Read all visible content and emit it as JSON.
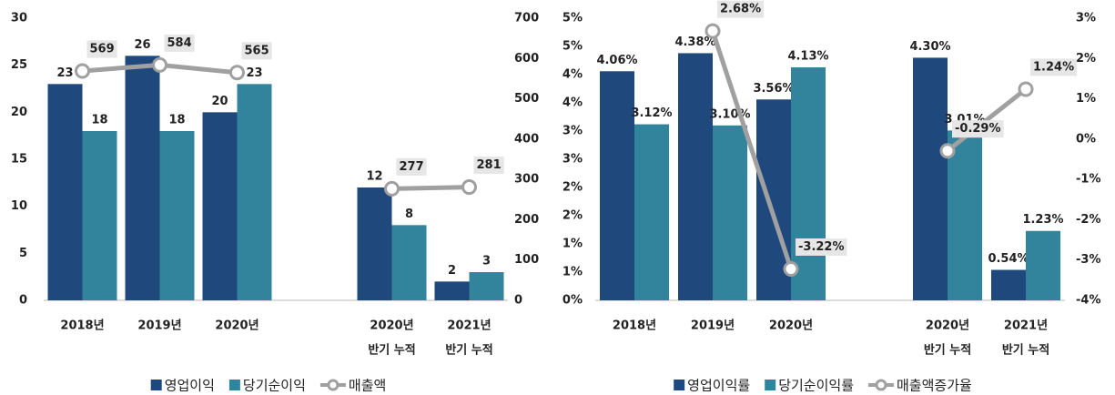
{
  "chart_data": [
    {
      "type": "bar-line",
      "categories": [
        [
          "2018년"
        ],
        [
          "2019년"
        ],
        [
          "2020년"
        ],
        null,
        [
          "2020년",
          "반기 누적"
        ],
        [
          "2021년",
          "반기 누적"
        ]
      ],
      "ylim": [
        0,
        30
      ],
      "yticks": [
        0,
        5,
        10,
        15,
        20,
        25,
        30
      ],
      "y2lim": [
        0,
        700
      ],
      "y2ticks": [
        0,
        100,
        200,
        300,
        400,
        500,
        600,
        700
      ],
      "legend": "bottom",
      "series": [
        {
          "name": "영업이익",
          "type": "bar",
          "color": "#1f497d",
          "values": [
            23,
            26,
            20,
            null,
            12,
            2
          ]
        },
        {
          "name": "당기순이익",
          "type": "bar",
          "color": "#31849b",
          "values": [
            18,
            18,
            23,
            null,
            8,
            3
          ]
        },
        {
          "name": "매출액",
          "type": "line",
          "axis": "y2",
          "color": "#a0a0a0",
          "values": [
            569,
            584,
            565,
            null,
            277,
            281
          ]
        }
      ]
    },
    {
      "type": "bar-line",
      "categories": [
        [
          "2018년"
        ],
        [
          "2019년"
        ],
        [
          "2020년"
        ],
        null,
        [
          "2020년",
          "반기 누적"
        ],
        [
          "2021년",
          "반기 누적"
        ]
      ],
      "ylim": [
        0,
        5
      ],
      "yticks": [
        {
          "value": 0,
          "label": "0%"
        },
        {
          "value": 0.5,
          "label": "1%"
        },
        {
          "value": 1,
          "label": "1%"
        },
        {
          "value": 1.5,
          "label": "2%"
        },
        {
          "value": 2,
          "label": "2%"
        },
        {
          "value": 2.5,
          "label": "3%"
        },
        {
          "value": 3,
          "label": "3%"
        },
        {
          "value": 3.5,
          "label": "4%"
        },
        {
          "value": 4,
          "label": "4%"
        },
        {
          "value": 4.5,
          "label": "5%"
        },
        {
          "value": 5,
          "label": "5%"
        }
      ],
      "y2lim": [
        -4,
        3
      ],
      "y2ticks": [
        {
          "value": -4,
          "label": "-4%"
        },
        {
          "value": -3,
          "label": "-3%"
        },
        {
          "value": -2,
          "label": "-2%"
        },
        {
          "value": -1,
          "label": "-1%"
        },
        {
          "value": 0,
          "label": "0%"
        },
        {
          "value": 1,
          "label": "1%"
        },
        {
          "value": 2,
          "label": "2%"
        },
        {
          "value": 3,
          "label": "3%"
        }
      ],
      "legend": "bottom",
      "series": [
        {
          "name": "영업이익률",
          "type": "bar",
          "color": "#1f497d",
          "values": [
            4.06,
            4.38,
            3.56,
            null,
            4.3,
            0.54
          ],
          "value_labels": [
            "4.06%",
            "4.38%",
            "3.56%",
            null,
            "4.30%",
            "0.54%"
          ]
        },
        {
          "name": "당기순이익률",
          "type": "bar",
          "color": "#31849b",
          "values": [
            3.12,
            3.1,
            4.13,
            null,
            3.01,
            1.23
          ],
          "value_labels": [
            "3.12%",
            "3.10%",
            "4.13%",
            null,
            "3.01%",
            "1.23%"
          ]
        },
        {
          "name": "매출액증가율",
          "type": "line",
          "axis": "y2",
          "color": "#a0a0a0",
          "values": [
            null,
            2.68,
            -3.22,
            null,
            -0.29,
            1.24
          ],
          "value_labels": [
            null,
            "2.68%",
            "-3.22%",
            null,
            "-0.29%",
            "1.24%"
          ]
        }
      ]
    }
  ]
}
